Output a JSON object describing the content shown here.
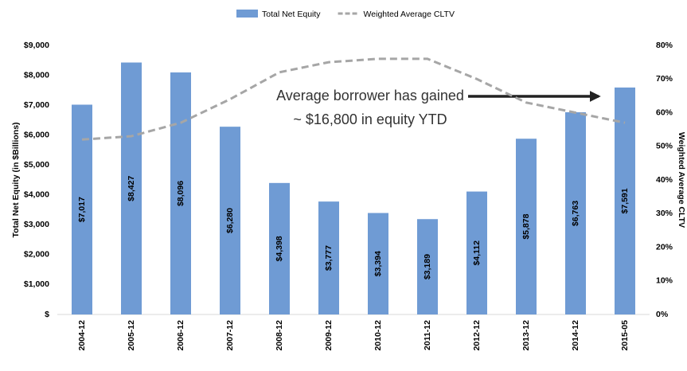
{
  "chart_data": {
    "type": "bar",
    "categories": [
      "2004-12",
      "2005-12",
      "2006-12",
      "2007-12",
      "2008-12",
      "2009-12",
      "2010-12",
      "2011-12",
      "2012-12",
      "2013-12",
      "2014-12",
      "2015-05"
    ],
    "series": [
      {
        "name": "Total Net Equity",
        "color": "#6f9bd4",
        "type": "bar",
        "values": [
          7017,
          8427,
          8096,
          6280,
          4398,
          3777,
          3394,
          3189,
          4112,
          5878,
          6763,
          7591
        ],
        "value_labels": [
          "$7,017",
          "$8,427",
          "$8,096",
          "$6,280",
          "$4,398",
          "$3,777",
          "$3,394",
          "$3,189",
          "$4,112",
          "$5,878",
          "$6,763",
          "$7,591"
        ]
      },
      {
        "name": "Weighted Average CLTV",
        "color": "#a6a6a6",
        "type": "line",
        "axis": "y2",
        "values": [
          52,
          53,
          57,
          64,
          72,
          75,
          76,
          76,
          70,
          63,
          60,
          57
        ]
      }
    ],
    "y_label": "Total Net Equity (in $Billions)",
    "y2_label": "Weighted Average CLTV",
    "annotation": [
      "Average borrower has gained",
      "~ $16,800 in equity YTD"
    ],
    "ylim": [
      0,
      9000
    ],
    "yticks": [
      {
        "value": 0,
        "label": "$"
      },
      {
        "value": 1000,
        "label": "$1,000"
      },
      {
        "value": 2000,
        "label": "$2,000"
      },
      {
        "value": 3000,
        "label": "$3,000"
      },
      {
        "value": 4000,
        "label": "$4,000"
      },
      {
        "value": 5000,
        "label": "$5,000"
      },
      {
        "value": 6000,
        "label": "$6,000"
      },
      {
        "value": 7000,
        "label": "$7,000"
      },
      {
        "value": 8000,
        "label": "$8,000"
      },
      {
        "value": 9000,
        "label": "$9,000"
      }
    ],
    "y2lim": [
      0,
      80
    ],
    "y2ticks": [
      {
        "value": 0,
        "label": "0%"
      },
      {
        "value": 10,
        "label": "10%"
      },
      {
        "value": 20,
        "label": "20%"
      },
      {
        "value": 30,
        "label": "30%"
      },
      {
        "value": 40,
        "label": "40%"
      },
      {
        "value": 50,
        "label": "50%"
      },
      {
        "value": 60,
        "label": "60%"
      },
      {
        "value": 70,
        "label": "70%"
      },
      {
        "value": 80,
        "label": "80%"
      }
    ],
    "legend": "top",
    "grid": false
  }
}
